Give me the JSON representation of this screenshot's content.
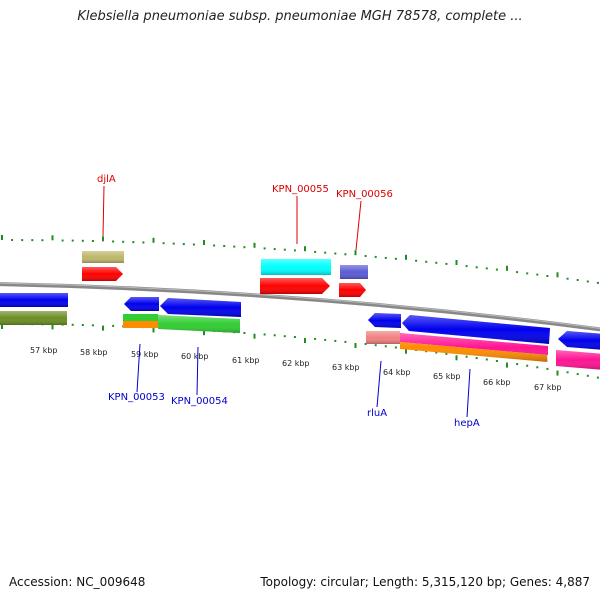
{
  "header": {
    "title": "Klebsiella pneumoniae subsp. pneumoniae MGH 78578, complete ..."
  },
  "footer": {
    "accession": "Accession: NC_009648",
    "summary": "Topology: circular; Length: 5,315,120 bp; Genes: 4,887"
  },
  "map": {
    "kbp_labels": [
      "57 kbp",
      "58 kbp",
      "59 kbp",
      "60 kbp",
      "61 kbp",
      "62 kbp",
      "63 kbp",
      "64 kbp",
      "65 kbp",
      "66 kbp",
      "67 kbp"
    ],
    "top_gene_labels": [
      "djlA",
      "KPN_00055",
      "KPN_00056"
    ],
    "bottom_gene_labels": [
      "KPN_00053",
      "KPN_00054",
      "rluA",
      "hepA"
    ],
    "colors": {
      "top_label": "#dd0000",
      "bottom_label": "#0000cc",
      "tick": "#228b22",
      "backbone": "#888888",
      "blue": "#0000ee",
      "red": "#ff0000",
      "cyan": "#00ffff",
      "olive": "#6b8e23",
      "khaki": "#bdb76b",
      "green": "#32cd32",
      "orange": "#ff8c00",
      "magenta": "#ff1493",
      "salmon": "#f08080",
      "slate": "#5b5bd6"
    }
  }
}
